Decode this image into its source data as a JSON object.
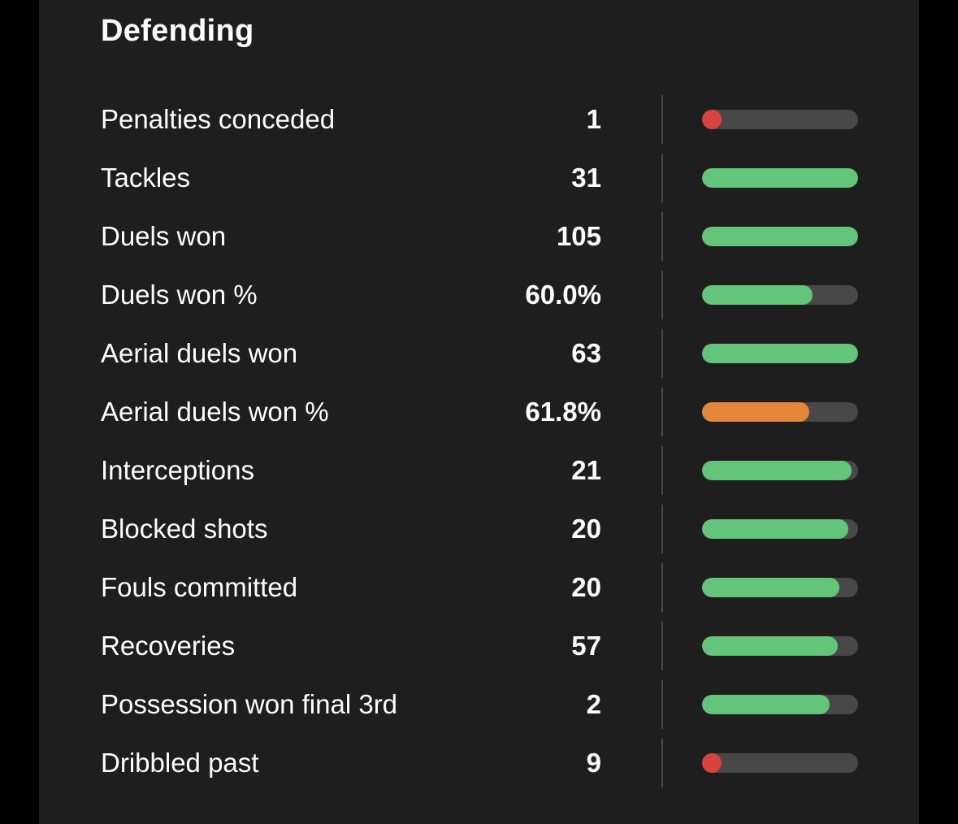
{
  "section": {
    "title": "Defending"
  },
  "colors": {
    "background": "#1e1e1e",
    "outer": "#000000",
    "track": "#484848",
    "good": "#62c57a",
    "average": "#e5873a",
    "poor": "#d9433f"
  },
  "stats": [
    {
      "label": "Penalties conceded",
      "value": "1",
      "level": 0.06,
      "rating": "poor"
    },
    {
      "label": "Tackles",
      "value": "31",
      "level": 1.0,
      "rating": "good"
    },
    {
      "label": "Duels won",
      "value": "105",
      "level": 1.0,
      "rating": "good"
    },
    {
      "label": "Duels won %",
      "value": "60.0%",
      "level": 0.71,
      "rating": "good"
    },
    {
      "label": "Aerial duels won",
      "value": "63",
      "level": 1.0,
      "rating": "good"
    },
    {
      "label": "Aerial duels won %",
      "value": "61.8%",
      "level": 0.69,
      "rating": "average"
    },
    {
      "label": "Interceptions",
      "value": "21",
      "level": 0.96,
      "rating": "good"
    },
    {
      "label": "Blocked shots",
      "value": "20",
      "level": 0.94,
      "rating": "good"
    },
    {
      "label": "Fouls committed",
      "value": "20",
      "level": 0.88,
      "rating": "good"
    },
    {
      "label": "Recoveries",
      "value": "57",
      "level": 0.87,
      "rating": "good"
    },
    {
      "label": "Possession won final 3rd",
      "value": "2",
      "level": 0.82,
      "rating": "good"
    },
    {
      "label": "Dribbled past",
      "value": "9",
      "level": 0.06,
      "rating": "poor"
    }
  ]
}
